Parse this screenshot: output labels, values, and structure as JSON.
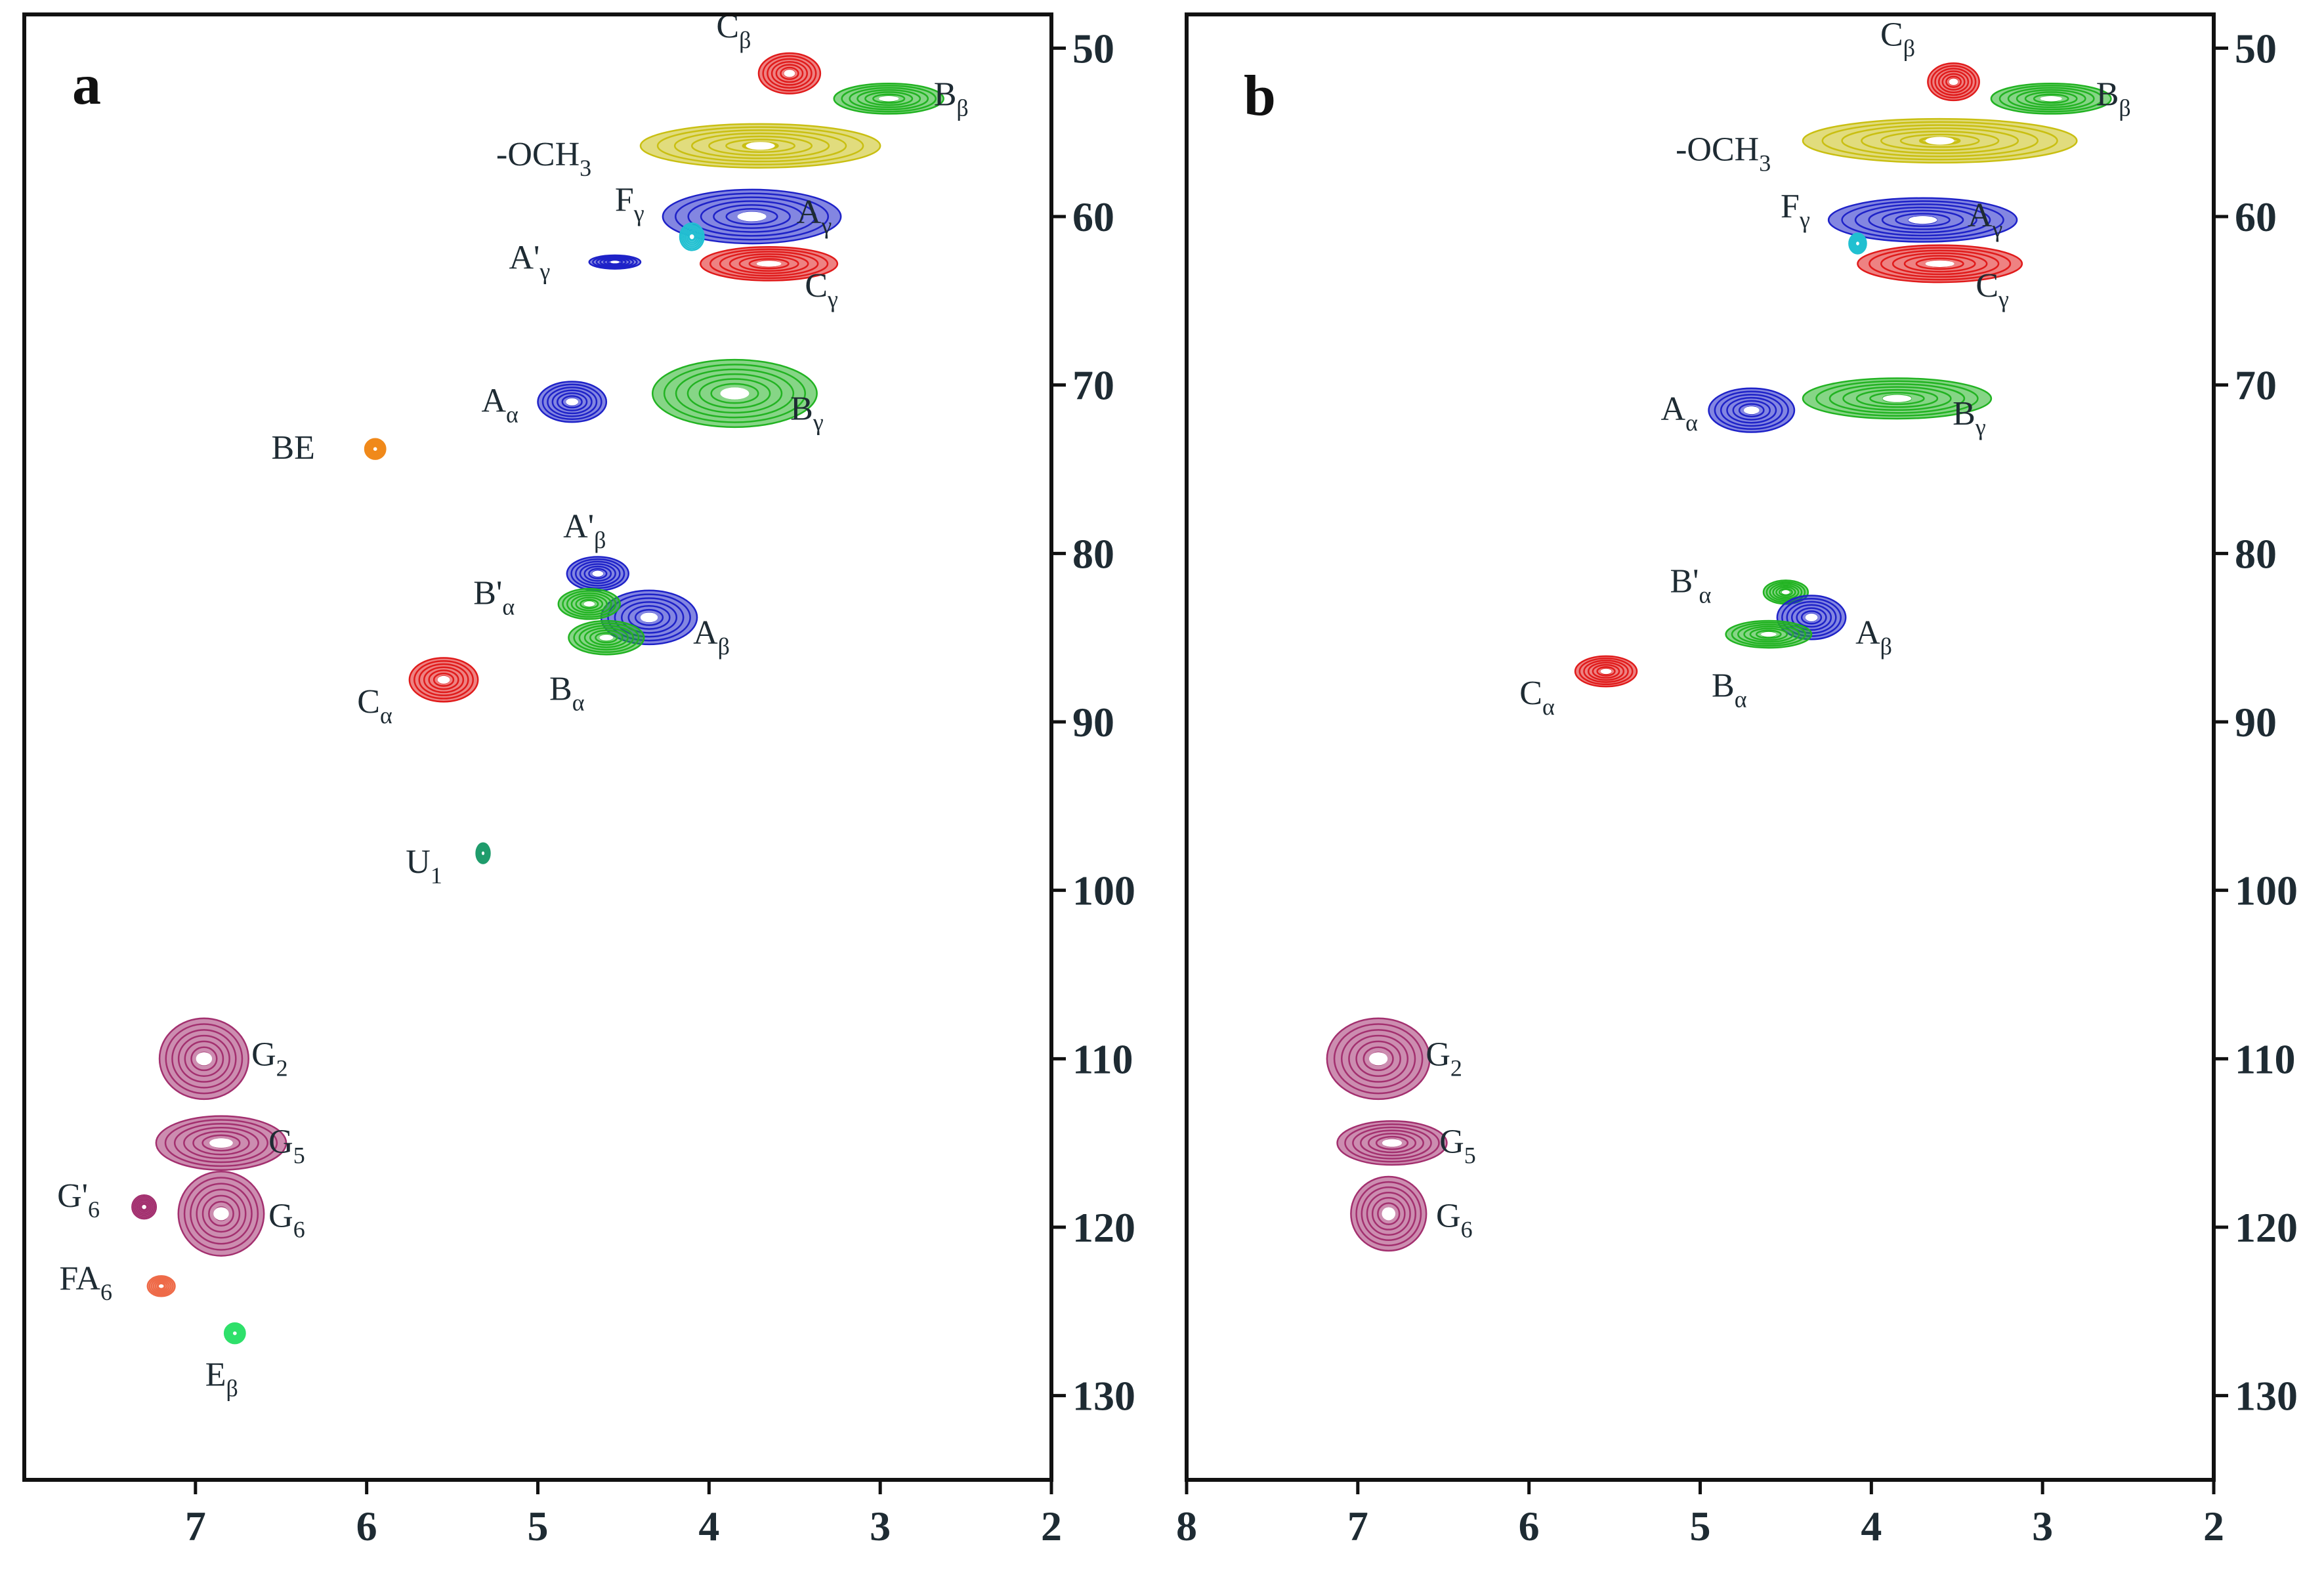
{
  "chart_data": [
    {
      "type": "scatter",
      "panel": "a",
      "xlabel": "",
      "ylabel": "",
      "xlim": [
        8,
        2
      ],
      "ylim": [
        48,
        135
      ],
      "x_ticks": [
        "7",
        "6",
        "5",
        "4",
        "3",
        "2"
      ],
      "y_ticks": [
        "50",
        "60",
        "70",
        "80",
        "90",
        "100",
        "110",
        "120",
        "130"
      ],
      "peaks": [
        {
          "label": "C",
          "sub": "β",
          "x": 3.53,
          "y": 51.5,
          "rx": 0.18,
          "ry": 1.2,
          "color": "#e01b1b"
        },
        {
          "label": "B",
          "sub": "β",
          "x": 2.95,
          "y": 53.0,
          "rx": 0.32,
          "ry": 0.9,
          "color": "#22b322"
        },
        {
          "label": "-OCH",
          "sub": "3",
          "x": 3.7,
          "y": 55.8,
          "rx": 0.7,
          "ry": 1.3,
          "color": "#c9bf12"
        },
        {
          "label": "A",
          "sub": "γ",
          "x": 3.75,
          "y": 60.0,
          "rx": 0.52,
          "ry": 1.6,
          "color": "#1e22c8"
        },
        {
          "label": "F",
          "sub": "γ",
          "x": 4.1,
          "y": 61.2,
          "rx": 0.07,
          "ry": 0.8,
          "color": "#21c0d1"
        },
        {
          "label": "A'",
          "sub": "γ",
          "x": 4.55,
          "y": 62.7,
          "rx": 0.15,
          "ry": 0.4,
          "color": "#1e22c8"
        },
        {
          "label": "C",
          "sub": "γ",
          "x": 3.65,
          "y": 62.8,
          "rx": 0.4,
          "ry": 1.0,
          "color": "#e01b1b"
        },
        {
          "label": "A",
          "sub": "α",
          "x": 4.8,
          "y": 71.0,
          "rx": 0.2,
          "ry": 1.2,
          "color": "#1e22c8"
        },
        {
          "label": "B",
          "sub": "γ",
          "x": 3.85,
          "y": 70.5,
          "rx": 0.48,
          "ry": 2.0,
          "color": "#22b322"
        },
        {
          "label": "BE",
          "sub": "",
          "x": 5.95,
          "y": 73.8,
          "rx": 0.06,
          "ry": 0.6,
          "color": "#f0891a"
        },
        {
          "label": "A'",
          "sub": "β",
          "x": 4.65,
          "y": 81.2,
          "rx": 0.18,
          "ry": 1.0,
          "color": "#1e22c8"
        },
        {
          "label": "A",
          "sub": "β",
          "x": 4.35,
          "y": 83.8,
          "rx": 0.28,
          "ry": 1.6,
          "color": "#1e22c8"
        },
        {
          "label": "B'",
          "sub": "α",
          "x": 4.7,
          "y": 83.0,
          "rx": 0.18,
          "ry": 0.9,
          "color": "#22b322"
        },
        {
          "label": "B",
          "sub": "α",
          "x": 4.6,
          "y": 85.0,
          "rx": 0.22,
          "ry": 1.0,
          "color": "#22b322"
        },
        {
          "label": "C",
          "sub": "α",
          "x": 5.55,
          "y": 87.5,
          "rx": 0.2,
          "ry": 1.3,
          "color": "#e01b1b"
        },
        {
          "label": "U",
          "sub": "1",
          "x": 5.32,
          "y": 97.8,
          "rx": 0.04,
          "ry": 0.6,
          "color": "#1f9c6c"
        },
        {
          "label": "G",
          "sub": "2",
          "x": 6.95,
          "y": 110.0,
          "rx": 0.26,
          "ry": 2.4,
          "color": "#a3306f"
        },
        {
          "label": "G",
          "sub": "5",
          "x": 6.85,
          "y": 115.0,
          "rx": 0.38,
          "ry": 1.6,
          "color": "#a3306f"
        },
        {
          "label": "G'",
          "sub": "6",
          "x": 7.3,
          "y": 118.8,
          "rx": 0.07,
          "ry": 0.7,
          "color": "#a3306f"
        },
        {
          "label": "G",
          "sub": "6",
          "x": 6.85,
          "y": 119.2,
          "rx": 0.25,
          "ry": 2.5,
          "color": "#a3306f"
        },
        {
          "label": "FA",
          "sub": "6",
          "x": 7.2,
          "y": 123.5,
          "rx": 0.08,
          "ry": 0.6,
          "color": "#ee6a48"
        },
        {
          "label": "E",
          "sub": "β",
          "x": 6.77,
          "y": 126.3,
          "rx": 0.06,
          "ry": 0.6,
          "color": "#2ee06a"
        }
      ]
    },
    {
      "type": "scatter",
      "panel": "b",
      "xlabel": "",
      "ylabel": "",
      "xlim": [
        8,
        2
      ],
      "ylim": [
        48,
        135
      ],
      "x_ticks": [
        "8",
        "7",
        "6",
        "5",
        "4",
        "3",
        "2"
      ],
      "y_ticks": [
        "50",
        "60",
        "70",
        "80",
        "90",
        "100",
        "110",
        "120",
        "130"
      ],
      "peaks": [
        {
          "label": "C",
          "sub": "β",
          "x": 3.52,
          "y": 52.0,
          "rx": 0.15,
          "ry": 1.1,
          "color": "#e01b1b"
        },
        {
          "label": "B",
          "sub": "β",
          "x": 2.95,
          "y": 53.0,
          "rx": 0.35,
          "ry": 0.9,
          "color": "#22b322"
        },
        {
          "label": "-OCH",
          "sub": "3",
          "x": 3.6,
          "y": 55.5,
          "rx": 0.8,
          "ry": 1.3,
          "color": "#c9bf12"
        },
        {
          "label": "A",
          "sub": "γ",
          "x": 3.7,
          "y": 60.2,
          "rx": 0.55,
          "ry": 1.3,
          "color": "#1e22c8"
        },
        {
          "label": "F",
          "sub": "γ",
          "x": 4.08,
          "y": 61.6,
          "rx": 0.05,
          "ry": 0.6,
          "color": "#21c0d1"
        },
        {
          "label": "C",
          "sub": "γ",
          "x": 3.6,
          "y": 62.8,
          "rx": 0.48,
          "ry": 1.1,
          "color": "#e01b1b"
        },
        {
          "label": "A",
          "sub": "α",
          "x": 4.7,
          "y": 71.5,
          "rx": 0.25,
          "ry": 1.3,
          "color": "#1e22c8"
        },
        {
          "label": "B",
          "sub": "γ",
          "x": 3.85,
          "y": 70.8,
          "rx": 0.55,
          "ry": 1.2,
          "color": "#22b322"
        },
        {
          "label": "B'",
          "sub": "α",
          "x": 4.5,
          "y": 82.3,
          "rx": 0.13,
          "ry": 0.7,
          "color": "#22b322"
        },
        {
          "label": "A",
          "sub": "β",
          "x": 4.35,
          "y": 83.8,
          "rx": 0.2,
          "ry": 1.3,
          "color": "#1e22c8"
        },
        {
          "label": "B",
          "sub": "α",
          "x": 4.6,
          "y": 84.8,
          "rx": 0.25,
          "ry": 0.8,
          "color": "#22b322"
        },
        {
          "label": "C",
          "sub": "α",
          "x": 5.55,
          "y": 87.0,
          "rx": 0.18,
          "ry": 0.9,
          "color": "#e01b1b"
        },
        {
          "label": "G",
          "sub": "2",
          "x": 6.88,
          "y": 110.0,
          "rx": 0.3,
          "ry": 2.4,
          "color": "#a3306f"
        },
        {
          "label": "G",
          "sub": "5",
          "x": 6.8,
          "y": 115.0,
          "rx": 0.32,
          "ry": 1.3,
          "color": "#a3306f"
        },
        {
          "label": "G",
          "sub": "6",
          "x": 6.82,
          "y": 119.2,
          "rx": 0.22,
          "ry": 2.2,
          "color": "#a3306f"
        }
      ]
    }
  ]
}
